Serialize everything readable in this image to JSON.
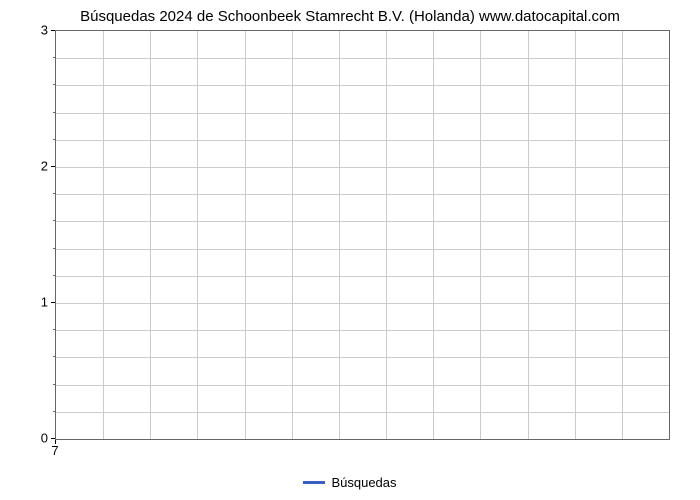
{
  "chart": {
    "type": "line",
    "title": "Búsquedas 2024 de Schoonbeek Stamrecht B.V. (Holanda) www.datocapital.com",
    "title_fontsize": 15,
    "title_color": "#000000",
    "background_color": "#ffffff",
    "plot_border_color": "#666666",
    "grid_color": "#cccccc",
    "y_axis": {
      "min": 0,
      "max": 3,
      "major_ticks": [
        0,
        1,
        2,
        3
      ],
      "minor_step": 0.2,
      "label_fontsize": 13,
      "label_color": "#000000"
    },
    "x_axis": {
      "ticks": [
        7
      ],
      "label_fontsize": 13,
      "label_color": "#000000",
      "grid_columns": 13
    },
    "grid_rows": 15,
    "series": [
      {
        "name": "Búsquedas",
        "color": "#3b5fc0",
        "line_width": 3,
        "data": []
      }
    ],
    "legend": {
      "position": "bottom-center",
      "fontsize": 13,
      "items": [
        {
          "label": "Búsquedas",
          "color": "#3b5fc0"
        }
      ]
    }
  }
}
